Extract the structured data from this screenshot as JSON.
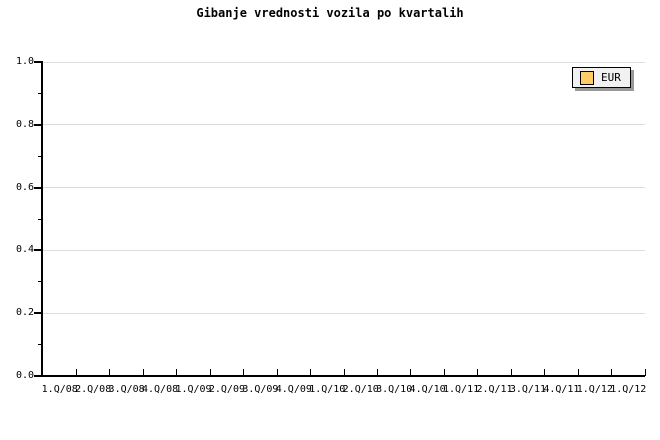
{
  "title": "Gibanje vrednosti vozila po kvartalih",
  "legend": {
    "items": [
      {
        "label": "EUR",
        "swatch_color": "#FFCC66"
      }
    ]
  },
  "chart_data": {
    "type": "line",
    "title": "Gibanje vrednosti vozila po kvartalih",
    "categories": [
      "1.Q/08",
      "2.Q/08",
      "3.Q/08",
      "4.Q/08",
      "1.Q/09",
      "2.Q/09",
      "3.Q/09",
      "4.Q/09",
      "1.Q/10",
      "2.Q/10",
      "3.Q/10",
      "4.Q/10",
      "1.Q/11",
      "2.Q/11",
      "3.Q/11",
      "4.Q/11",
      "1.Q/12",
      "1.Q/12"
    ],
    "series": [
      {
        "name": "EUR",
        "color": "#FFCC66",
        "values": []
      }
    ],
    "plot_empty": true,
    "xlabel": "",
    "ylabel": "",
    "ylim": [
      0.0,
      1.0
    ],
    "yticks": [
      0.0,
      0.2,
      0.4,
      0.6,
      0.8,
      1.0
    ],
    "ytick_labels": [
      "0.0",
      "0.2",
      "0.4",
      "0.6",
      "0.8",
      "1.0"
    ],
    "y_minor_tick_interval": 0.1,
    "grid": "horizontal gridlines at major y ticks only",
    "legend_position": "top-right"
  },
  "colors": {
    "background": "#FFFFFF",
    "axis": "#000000",
    "gridline": "#DCDCDC",
    "text": "#000000",
    "legend_background": "#F1F1F1",
    "legend_border": "#000000",
    "legend_shadow": "#999999",
    "series_eur_swatch": "#FFCC66"
  }
}
